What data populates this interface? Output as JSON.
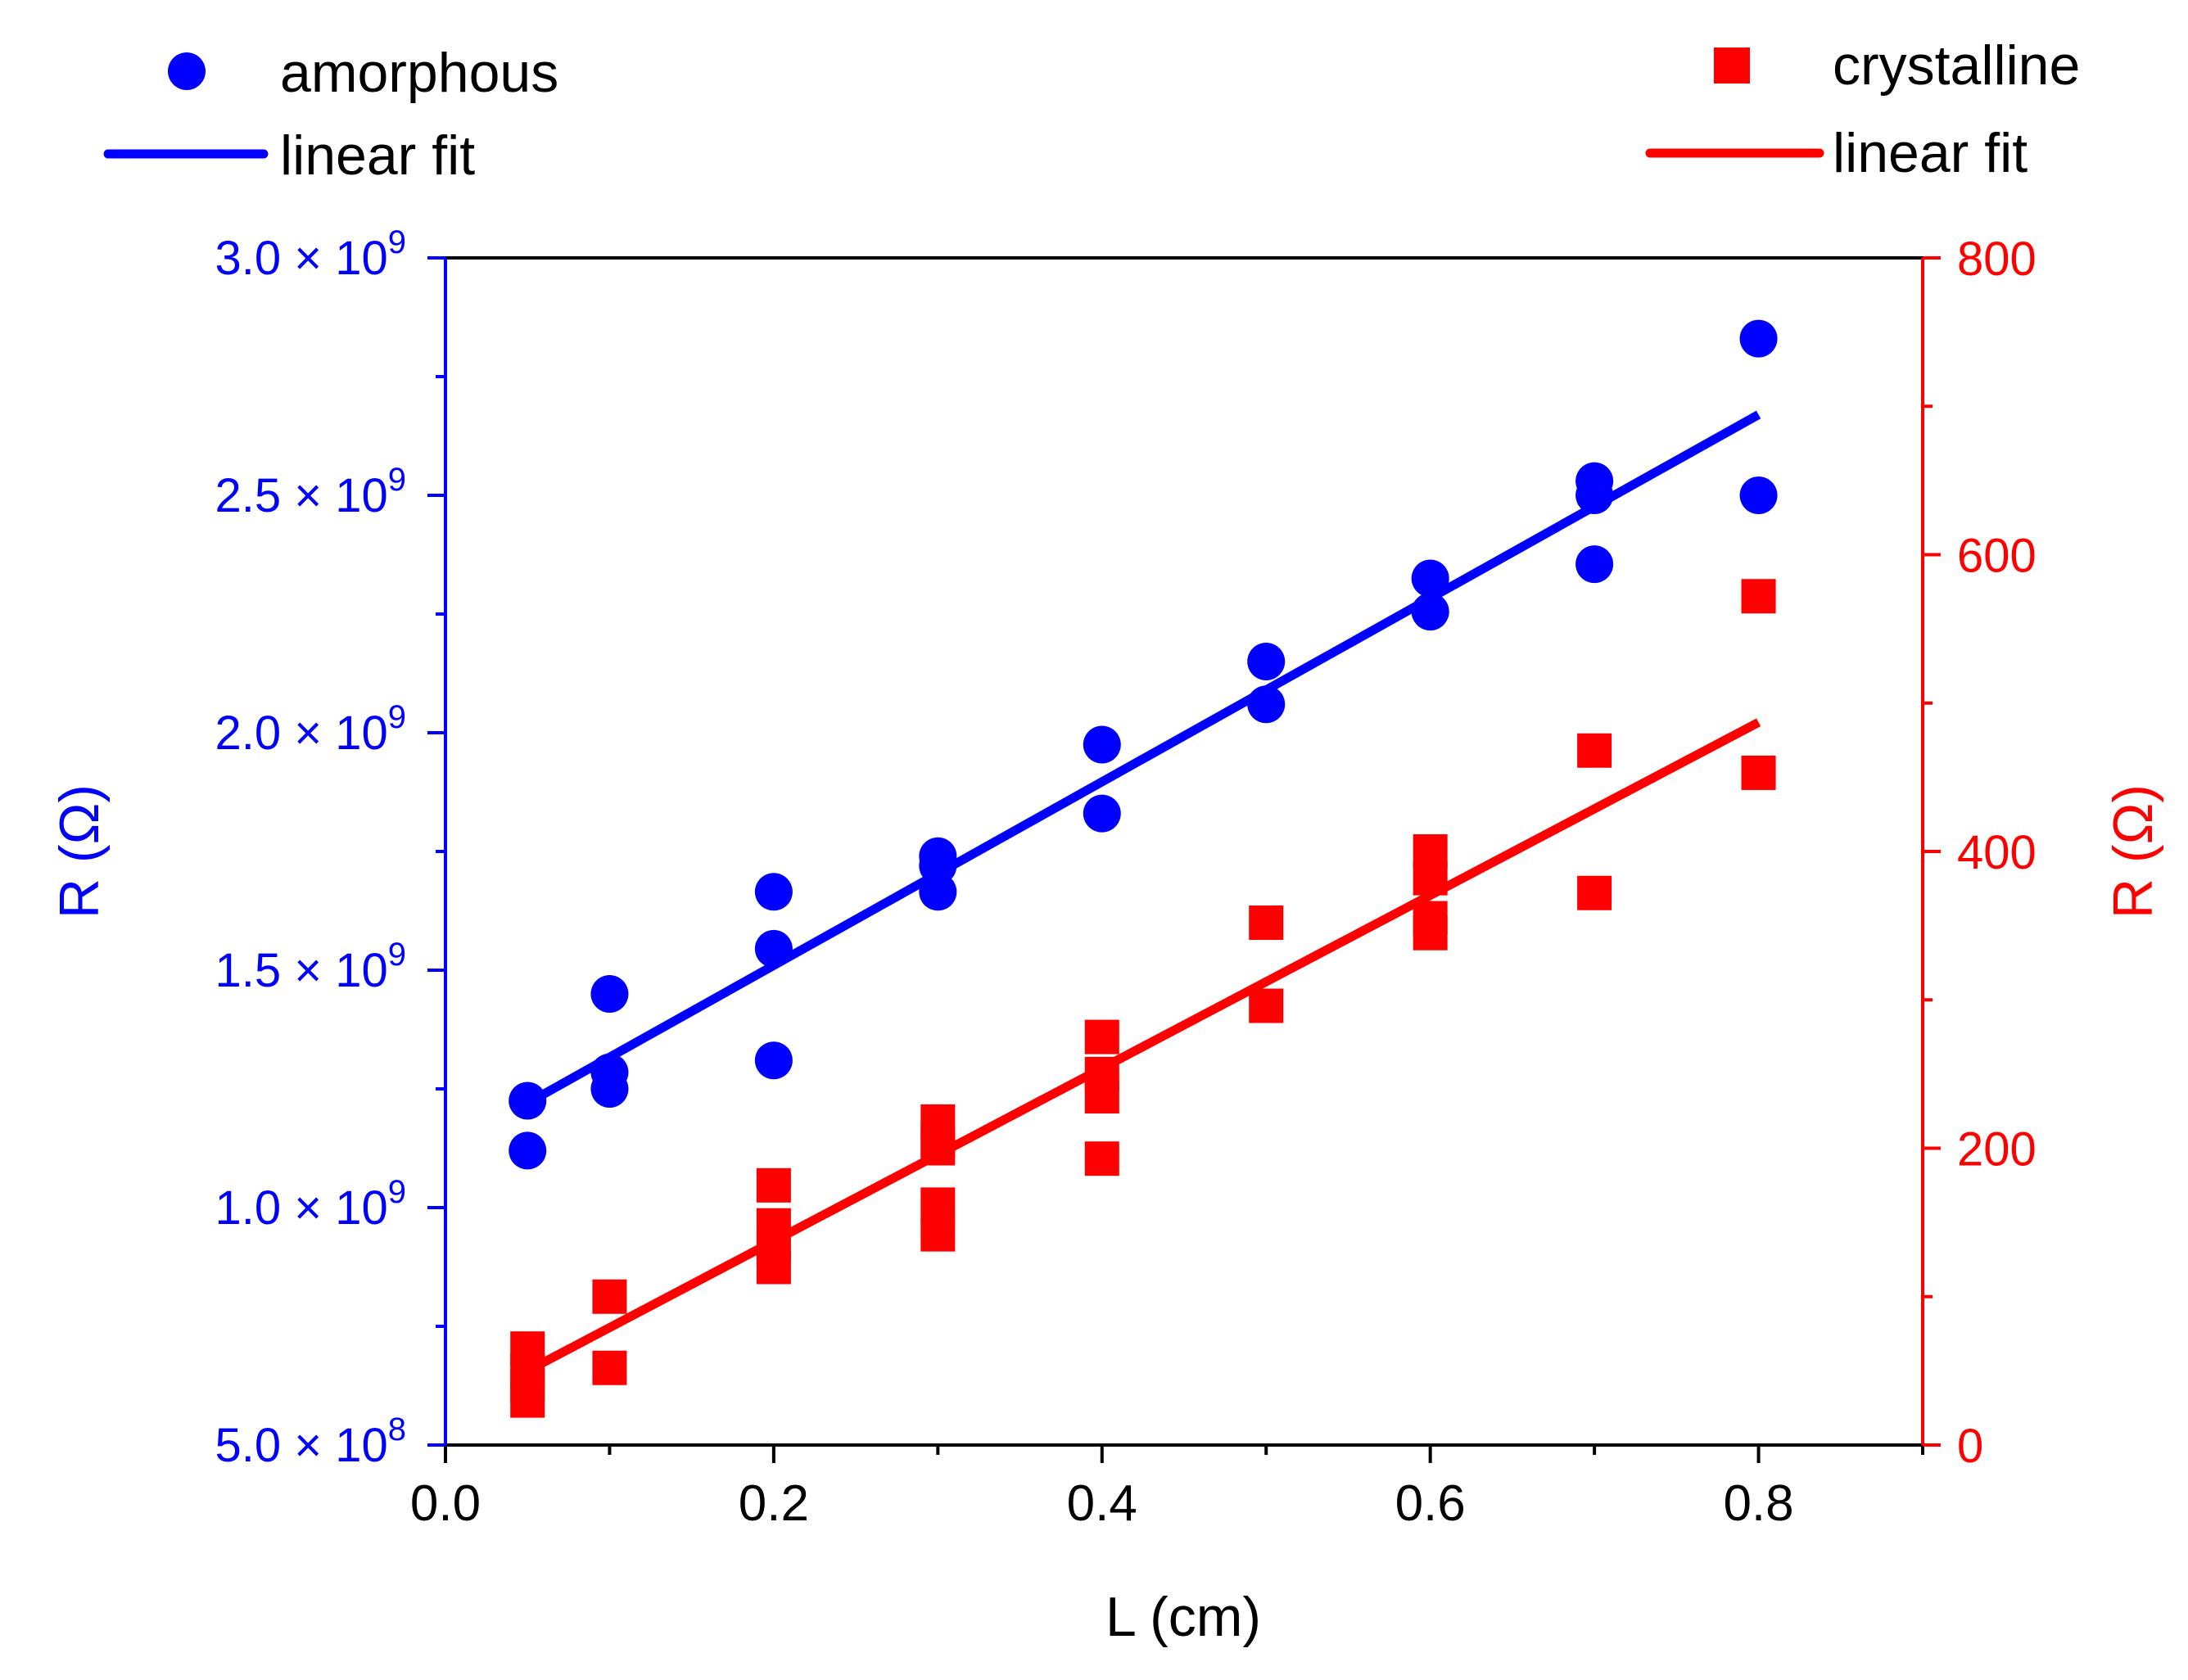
{
  "chart_data": {
    "type": "scatter",
    "xlabel": "L (cm)",
    "ylabel_left": "R (Ω)",
    "ylabel_right": "R (Ω)",
    "xlim": [
      0.0,
      0.9
    ],
    "ylim_left": [
      500000000,
      3000000000
    ],
    "ylim_right": [
      0,
      800
    ],
    "x_ticks": [
      {
        "value": 0.0,
        "label": "0.0"
      },
      {
        "value": 0.2,
        "label": "0.2"
      },
      {
        "value": 0.4,
        "label": "0.4"
      },
      {
        "value": 0.6,
        "label": "0.6"
      },
      {
        "value": 0.8,
        "label": "0.8"
      }
    ],
    "left_ticks": [
      {
        "value": 500000000,
        "mantissa": "5.0",
        "times": " × 10",
        "exp": "8"
      },
      {
        "value": 1000000000,
        "mantissa": "1.0",
        "times": " × 10",
        "exp": "9"
      },
      {
        "value": 1500000000,
        "mantissa": "1.5",
        "times": " × 10",
        "exp": "9"
      },
      {
        "value": 2000000000,
        "mantissa": "2.0",
        "times": " × 10",
        "exp": "9"
      },
      {
        "value": 2500000000,
        "mantissa": "2.5",
        "times": " × 10",
        "exp": "9"
      },
      {
        "value": 3000000000,
        "mantissa": "3.0",
        "times": " × 10",
        "exp": "9"
      }
    ],
    "right_ticks": [
      {
        "value": 0,
        "label": "0"
      },
      {
        "value": 200,
        "label": "200"
      },
      {
        "value": 400,
        "label": "400"
      },
      {
        "value": 600,
        "label": "600"
      },
      {
        "value": 800,
        "label": "800"
      }
    ],
    "series": [
      {
        "name": "amorphous",
        "axis": "left",
        "color": "#0000ff",
        "marker": "circle",
        "x": [
          0.05,
          0.05,
          0.1,
          0.1,
          0.1,
          0.2,
          0.2,
          0.2,
          0.3,
          0.3,
          0.3,
          0.4,
          0.4,
          0.5,
          0.5,
          0.6,
          0.6,
          0.7,
          0.7,
          0.7,
          0.8,
          0.8
        ],
        "y": [
          1225000000,
          1120000000,
          1450000000,
          1285000000,
          1250000000,
          1665000000,
          1545000000,
          1310000000,
          1740000000,
          1720000000,
          1665000000,
          1975000000,
          1830000000,
          2150000000,
          2060000000,
          2325000000,
          2255000000,
          2530000000,
          2500000000,
          2355000000,
          2830000000,
          2500000000
        ]
      },
      {
        "name": "crystalline",
        "axis": "right",
        "color": "#ff0000",
        "marker": "square",
        "x": [
          0.05,
          0.05,
          0.05,
          0.05,
          0.1,
          0.1,
          0.2,
          0.2,
          0.2,
          0.2,
          0.3,
          0.3,
          0.3,
          0.3,
          0.3,
          0.4,
          0.4,
          0.4,
          0.4,
          0.5,
          0.5,
          0.6,
          0.6,
          0.6,
          0.6,
          0.7,
          0.7,
          0.8,
          0.8
        ],
        "y": [
          65,
          50,
          40,
          30,
          100,
          52,
          175,
          148,
          135,
          120,
          218,
          200,
          162,
          142,
          205,
          275,
          250,
          235,
          193,
          352,
          296,
          400,
          382,
          355,
          345,
          468,
          372,
          572,
          453
        ]
      }
    ],
    "fits": [
      {
        "name": "linear fit",
        "axis": "left",
        "color": "#0000ff",
        "x": [
          0.05,
          0.8
        ],
        "y": [
          1220000000,
          2670000000
        ]
      },
      {
        "name": "linear fit",
        "axis": "right",
        "color": "#ff0000",
        "x": [
          0.05,
          0.8
        ],
        "y": [
          50,
          487
        ]
      }
    ],
    "legend_left": [
      {
        "label": "amorphous"
      },
      {
        "label": "linear fit"
      }
    ],
    "legend_right": [
      {
        "label": "crystalline"
      },
      {
        "label": "linear fit"
      }
    ]
  }
}
